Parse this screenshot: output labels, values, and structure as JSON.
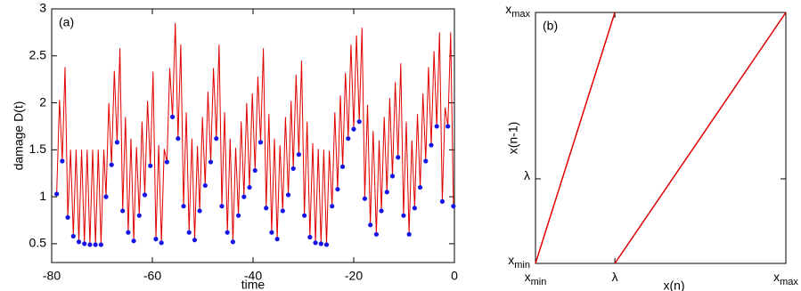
{
  "chart_data": [
    {
      "type": "line",
      "label": "(a)",
      "xlabel": "time",
      "ylabel": "damage D(t)",
      "line_color": "#e00000",
      "marker_color": "#1414e6",
      "xlim": [
        -80,
        0
      ],
      "xticks": [
        -80,
        -60,
        -40,
        -20,
        0
      ],
      "ylim": [
        0.3,
        3
      ],
      "yticks": [
        0.5,
        1,
        1.5,
        2,
        2.5,
        3
      ],
      "minima": {
        "x": [
          -79.0,
          -77.9,
          -76.8,
          -75.7,
          -74.6,
          -73.5,
          -72.4,
          -71.3,
          -70.2,
          -69.2,
          -68.1,
          -67.0,
          -65.9,
          -64.8,
          -63.7,
          -62.6,
          -61.5,
          -60.4,
          -59.3,
          -58.2,
          -57.1,
          -56.0,
          -54.9,
          -53.8,
          -52.7,
          -51.6,
          -50.6,
          -49.5,
          -48.4,
          -47.3,
          -46.2,
          -45.1,
          -44.0,
          -42.9,
          -41.8,
          -40.7,
          -39.6,
          -38.5,
          -37.4,
          -36.3,
          -35.2,
          -34.1,
          -33.0,
          -32.0,
          -30.9,
          -29.8,
          -28.7,
          -27.6,
          -26.5,
          -25.4,
          -24.3,
          -23.2,
          -22.2,
          -21.1,
          -20.0,
          -18.9,
          -17.8,
          -16.7,
          -15.5,
          -14.5,
          -13.4,
          -12.3,
          -11.2,
          -10.1,
          -9.0,
          -7.9,
          -6.8,
          -5.7,
          -4.6,
          -3.5,
          -2.4,
          -1.3,
          -0.2
        ],
        "values": [
          1.03,
          1.38,
          0.78,
          0.58,
          0.52,
          0.5,
          0.49,
          0.49,
          0.49,
          1.0,
          1.34,
          1.58,
          0.85,
          0.62,
          0.53,
          0.8,
          1.02,
          1.33,
          0.55,
          0.51,
          1.37,
          1.85,
          1.62,
          0.9,
          0.62,
          0.54,
          0.85,
          1.12,
          1.37,
          1.62,
          0.9,
          0.62,
          0.52,
          0.8,
          1.0,
          1.1,
          1.28,
          1.58,
          0.88,
          0.62,
          0.55,
          0.85,
          1.02,
          1.3,
          1.45,
          0.8,
          0.57,
          0.51,
          0.5,
          0.49,
          0.9,
          1.08,
          1.32,
          1.62,
          1.72,
          1.8,
          0.98,
          0.7,
          0.6,
          0.85,
          1.05,
          1.22,
          1.42,
          0.8,
          0.6,
          0.88,
          1.1,
          1.38,
          1.55,
          1.75,
          0.95,
          1.75,
          0.9
        ]
      },
      "maxima": {
        "x": [
          -78.45,
          -77.35,
          -76.25,
          -75.15,
          -74.05,
          -72.95,
          -71.85,
          -70.75,
          -69.65,
          -68.65,
          -67.55,
          -66.45,
          -65.35,
          -64.25,
          -63.15,
          -62.05,
          -60.95,
          -59.85,
          -58.75,
          -57.65,
          -56.55,
          -55.45,
          -54.35,
          -53.25,
          -52.15,
          -51.05,
          -50.05,
          -48.95,
          -47.85,
          -46.75,
          -45.65,
          -44.55,
          -43.45,
          -42.35,
          -41.25,
          -40.15,
          -39.05,
          -37.95,
          -36.85,
          -35.75,
          -34.65,
          -33.55,
          -32.45,
          -31.45,
          -30.35,
          -29.25,
          -28.15,
          -27.05,
          -25.95,
          -24.85,
          -23.75,
          -22.65,
          -21.65,
          -20.55,
          -19.45,
          -18.35,
          -17.25,
          -16.15,
          -14.95,
          -13.95,
          -12.85,
          -11.75,
          -10.65,
          -9.55,
          -8.45,
          -7.35,
          -6.25,
          -5.15,
          -4.05,
          -2.95,
          -1.85,
          -0.75
        ],
        "values": [
          2.03,
          2.38,
          1.5,
          1.5,
          1.5,
          1.5,
          1.5,
          1.5,
          1.5,
          2.0,
          2.34,
          2.58,
          1.85,
          1.62,
          1.53,
          1.8,
          2.02,
          2.33,
          1.55,
          1.51,
          2.37,
          2.85,
          2.62,
          1.9,
          1.62,
          1.54,
          1.85,
          2.12,
          2.37,
          2.62,
          1.9,
          1.62,
          1.52,
          1.8,
          2.0,
          2.1,
          2.28,
          2.58,
          1.88,
          1.62,
          1.55,
          1.85,
          2.02,
          2.3,
          2.45,
          1.8,
          1.57,
          1.51,
          1.5,
          1.49,
          1.9,
          2.08,
          2.32,
          2.62,
          2.72,
          2.8,
          1.98,
          1.7,
          1.6,
          1.85,
          2.05,
          2.22,
          2.42,
          1.8,
          1.6,
          1.88,
          2.1,
          2.38,
          2.55,
          2.75,
          1.95,
          2.75
        ]
      }
    },
    {
      "type": "map",
      "label": "(b)",
      "xlabel": "x(n)",
      "ylabel": "x(n-1)",
      "color": "#e00000",
      "xlim": [
        0,
        1
      ],
      "ylim": [
        0,
        1
      ],
      "xticks": [
        {
          "value": 0,
          "label": "x",
          "sub": "min"
        },
        {
          "value": 0.317,
          "label": "λ"
        },
        {
          "value": 1,
          "label": "x",
          "sub": "max"
        }
      ],
      "yticks": [
        {
          "value": 0,
          "label": "x",
          "sub": "min"
        },
        {
          "value": 0.337,
          "label": "λ"
        },
        {
          "value": 1,
          "label": "x",
          "sub": "max"
        }
      ],
      "series": [
        {
          "x": [
            0,
            0.317
          ],
          "values": [
            0,
            1
          ]
        },
        {
          "x": [
            0.317,
            1
          ],
          "values": [
            0,
            1
          ]
        }
      ]
    }
  ]
}
